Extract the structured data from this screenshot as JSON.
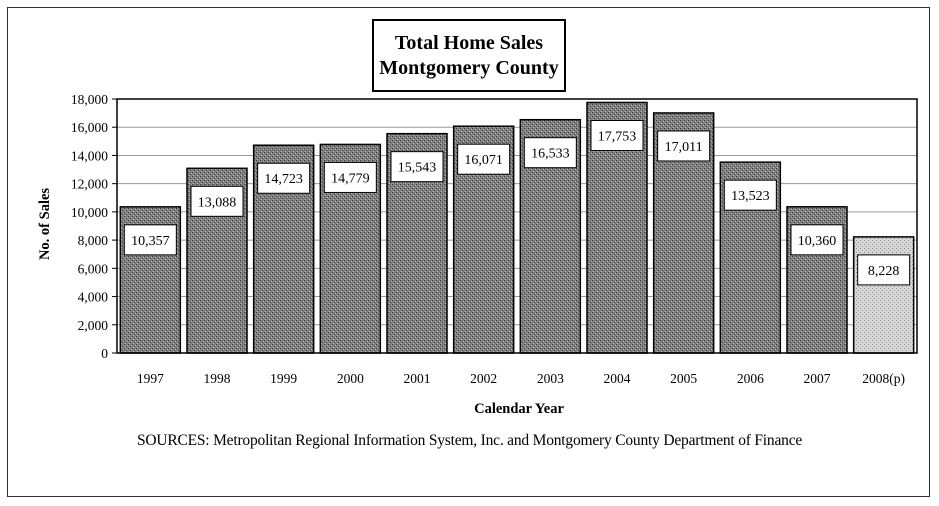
{
  "chart_data": {
    "type": "bar",
    "title": "Total Home Sales",
    "subtitle": "Montgomery County",
    "xlabel": "Calendar Year",
    "ylabel": "No. of Sales",
    "categories": [
      "1997",
      "1998",
      "1999",
      "2000",
      "2001",
      "2002",
      "2003",
      "2004",
      "2005",
      "2006",
      "2007",
      "2008(p)"
    ],
    "values": [
      10357,
      13088,
      14723,
      14779,
      15543,
      16071,
      16533,
      17753,
      17011,
      13523,
      10360,
      8228
    ],
    "value_labels": [
      "10,357",
      "13,088",
      "14,723",
      "14,779",
      "15,543",
      "16,071",
      "16,533",
      "17,753",
      "17,011",
      "13,523",
      "10,360",
      "8,228"
    ],
    "ylim": [
      0,
      18000
    ],
    "yticks": [
      0,
      2000,
      4000,
      6000,
      8000,
      10000,
      12000,
      14000,
      16000,
      18000
    ],
    "ytick_labels": [
      "0",
      "2,000",
      "4,000",
      "6,000",
      "8,000",
      "10,000",
      "12,000",
      "14,000",
      "16,000",
      "18,000"
    ],
    "grid": true,
    "legend": "none",
    "colors": {
      "bar": "#8a8a8a",
      "bar_preliminary": "#d4d4d4",
      "grid": "#9a9a9a"
    }
  },
  "sources": "SOURCES:  Metropolitan Regional Information System, Inc. and Montgomery County Department of Finance"
}
